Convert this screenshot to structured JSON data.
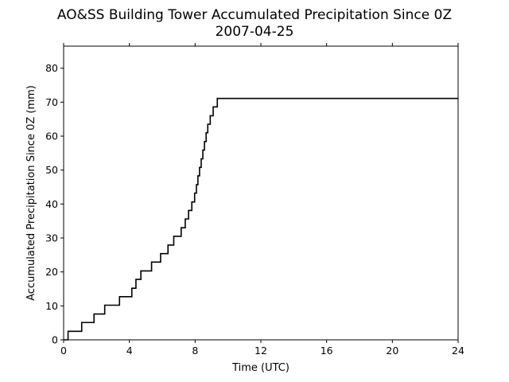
{
  "chart_data": {
    "type": "line",
    "title": "AO&SS Building Tower Accumulated Precipitation Since 0Z",
    "subtitle": "2007-04-25",
    "xlabel": "Time (UTC)",
    "ylabel": "Accumulated Precipitation Since 0Z (mm)",
    "xlim": [
      0,
      24
    ],
    "ylim": [
      0,
      86.5
    ],
    "xticks": [
      0,
      4,
      8,
      12,
      16,
      20,
      24
    ],
    "yticks": [
      0,
      10,
      20,
      30,
      40,
      50,
      60,
      70,
      80
    ],
    "grid": false,
    "line_color": "#000000",
    "step": true,
    "series": [
      {
        "x": [
          0.0,
          0.27,
          1.1,
          1.85,
          2.5,
          3.4,
          4.15,
          4.4,
          4.7,
          5.35,
          5.9,
          6.35,
          6.7,
          7.15,
          7.4,
          7.6,
          7.8,
          7.97,
          8.08,
          8.17,
          8.27,
          8.37,
          8.47,
          8.57,
          8.67,
          8.77,
          8.92,
          9.1,
          9.35,
          9.75,
          10.55,
          24.0
        ],
        "y": [
          0.0,
          2.5,
          5.1,
          7.6,
          10.2,
          12.7,
          15.2,
          17.8,
          20.3,
          22.9,
          25.4,
          27.9,
          30.5,
          33.0,
          35.6,
          38.1,
          40.6,
          43.2,
          45.7,
          48.3,
          50.8,
          53.3,
          55.9,
          58.4,
          61.0,
          63.5,
          66.0,
          68.6,
          71.1,
          71.1,
          71.1,
          71.1
        ]
      }
    ]
  }
}
